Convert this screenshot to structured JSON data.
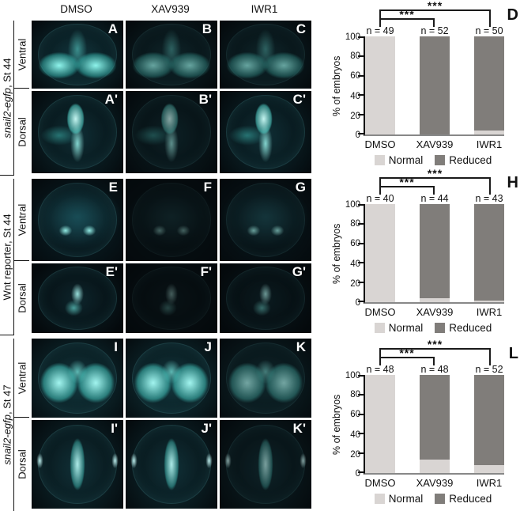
{
  "figure": {
    "column_headers": [
      "DMSO",
      "XAV939",
      "IWR1"
    ],
    "groups": [
      {
        "label_italic": "snail2-egfp",
        "label_rest": ", St 44",
        "rows": [
          {
            "view": "Ventral",
            "panels": [
              "A",
              "B",
              "C"
            ]
          },
          {
            "view": "Dorsal",
            "panels": [
              "A'",
              "B'",
              "C'"
            ]
          }
        ]
      },
      {
        "label_italic": "",
        "label_rest": "Wnt reporter, St 44",
        "rows": [
          {
            "view": "Ventral",
            "panels": [
              "E",
              "F",
              "G"
            ]
          },
          {
            "view": "Dorsal",
            "panels": [
              "E'",
              "F'",
              "G'"
            ]
          }
        ]
      },
      {
        "label_italic": "snail2-egfp",
        "label_rest": ", St 47",
        "rows": [
          {
            "view": "Ventral",
            "panels": [
              "I",
              "J",
              "K"
            ]
          },
          {
            "view": "Dorsal",
            "panels": [
              "I'",
              "J'",
              "K'"
            ]
          }
        ]
      }
    ]
  },
  "chart_data": [
    {
      "type": "bar",
      "stacked": true,
      "panel_letter": "D",
      "ylabel": "% of embryos",
      "ylim": [
        0,
        100
      ],
      "yticks": [
        0,
        20,
        40,
        60,
        80,
        100
      ],
      "categories": [
        "DMSO",
        "XAV939",
        "IWR1"
      ],
      "n_labels": [
        "n = 49",
        "n = 52",
        "n = 50"
      ],
      "series": [
        {
          "name": "Normal",
          "color": "#d9d5d3",
          "values": [
            100,
            0,
            4
          ]
        },
        {
          "name": "Reduced",
          "color": "#807d7a",
          "values": [
            0,
            100,
            96
          ]
        }
      ],
      "significance": [
        {
          "pair": "DMSO vs XAV939",
          "label": "***"
        },
        {
          "pair": "DMSO vs IWR1",
          "label": "***"
        }
      ],
      "legend": [
        "Normal",
        "Reduced"
      ]
    },
    {
      "type": "bar",
      "stacked": true,
      "panel_letter": "H",
      "ylabel": "% of embryos",
      "ylim": [
        0,
        100
      ],
      "yticks": [
        0,
        20,
        40,
        60,
        80,
        100
      ],
      "categories": [
        "DMSO",
        "XAV939",
        "IWR1"
      ],
      "n_labels": [
        "n = 40",
        "n = 44",
        "n = 43"
      ],
      "series": [
        {
          "name": "Normal",
          "color": "#d9d5d3",
          "values": [
            100,
            4,
            2
          ]
        },
        {
          "name": "Reduced",
          "color": "#807d7a",
          "values": [
            0,
            96,
            98
          ]
        }
      ],
      "significance": [
        {
          "pair": "DMSO vs XAV939",
          "label": "***"
        },
        {
          "pair": "DMSO vs IWR1",
          "label": "***"
        }
      ],
      "legend": [
        "Normal",
        "Reduced"
      ]
    },
    {
      "type": "bar",
      "stacked": true,
      "panel_letter": "L",
      "ylabel": "% of embryos",
      "ylim": [
        0,
        100
      ],
      "yticks": [
        0,
        20,
        40,
        60,
        80,
        100
      ],
      "categories": [
        "DMSO",
        "XAV939",
        "IWR1"
      ],
      "n_labels": [
        "n = 48",
        "n = 48",
        "n = 52"
      ],
      "series": [
        {
          "name": "Normal",
          "color": "#d9d5d3",
          "values": [
            100,
            14,
            8
          ]
        },
        {
          "name": "Reduced",
          "color": "#807d7a",
          "values": [
            0,
            86,
            92
          ]
        }
      ],
      "significance": [
        {
          "pair": "DMSO vs XAV939",
          "label": "***"
        },
        {
          "pair": "DMSO vs IWR1",
          "label": "***"
        }
      ],
      "legend": [
        "Normal",
        "Reduced"
      ]
    }
  ]
}
